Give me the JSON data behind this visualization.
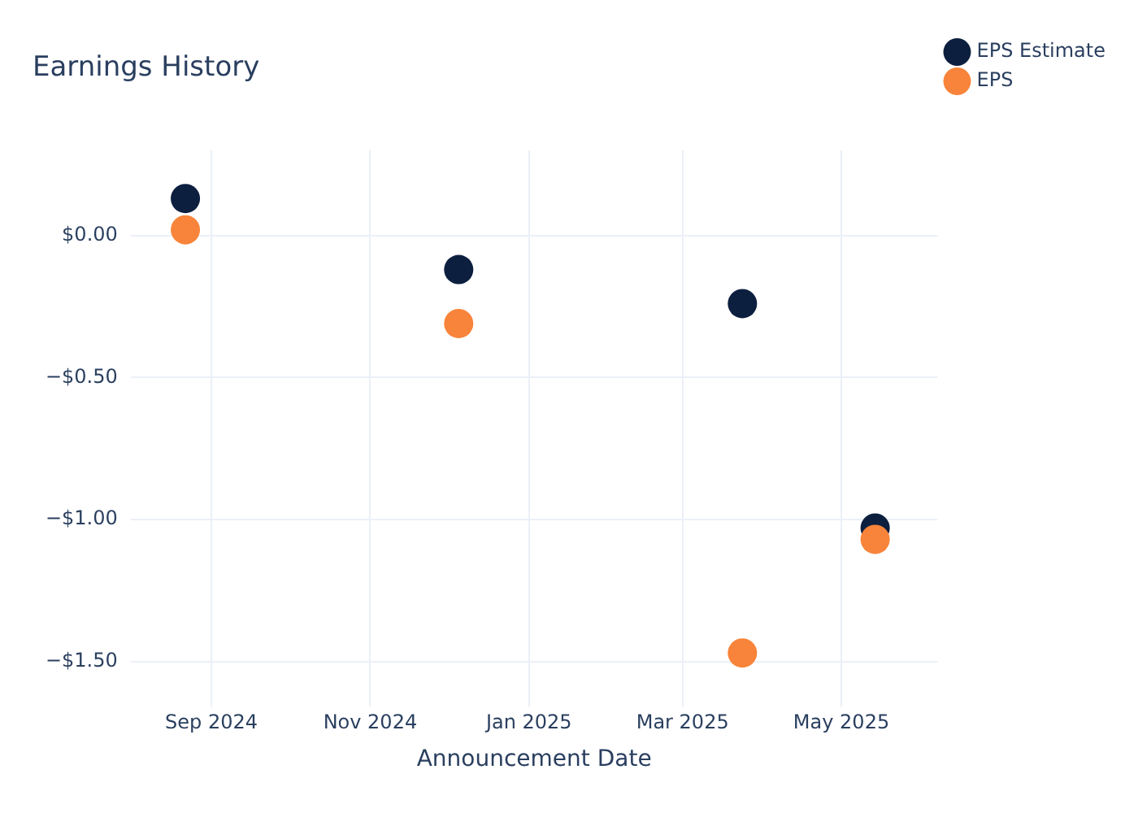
{
  "chart_data": {
    "type": "scatter",
    "title": "Earnings History",
    "xlabel": "Announcement Date",
    "x": [
      "2024-08-22",
      "2024-12-05",
      "2025-03-24",
      "2025-05-14"
    ],
    "series": [
      {
        "name": "EPS Estimate",
        "color": "#0d1f3f",
        "values": [
          0.13,
          -0.12,
          -0.24,
          -1.03
        ]
      },
      {
        "name": "EPS",
        "color": "#f7843a",
        "values": [
          0.02,
          -0.31,
          -1.47,
          -1.07
        ]
      }
    ],
    "xlim": [
      "2024-08-01",
      "2025-06-07"
    ],
    "xticks": [
      {
        "value": "2024-09",
        "label": "Sep 2024"
      },
      {
        "value": "2024-11",
        "label": "Nov 2024"
      },
      {
        "value": "2025-01",
        "label": "Jan 2025"
      },
      {
        "value": "2025-03",
        "label": "Mar 2025"
      },
      {
        "value": "2025-05",
        "label": "May 2025"
      }
    ],
    "ylim": [
      -1.66,
      0.3
    ],
    "yticks": [
      {
        "value": 0,
        "label": "$0.00"
      },
      {
        "value": -0.5,
        "label": "−$0.50"
      },
      {
        "value": -1,
        "label": "−$1.00"
      },
      {
        "value": -1.5,
        "label": "−$1.50"
      }
    ],
    "grid": true,
    "legend": "top right",
    "marker": "circle"
  }
}
